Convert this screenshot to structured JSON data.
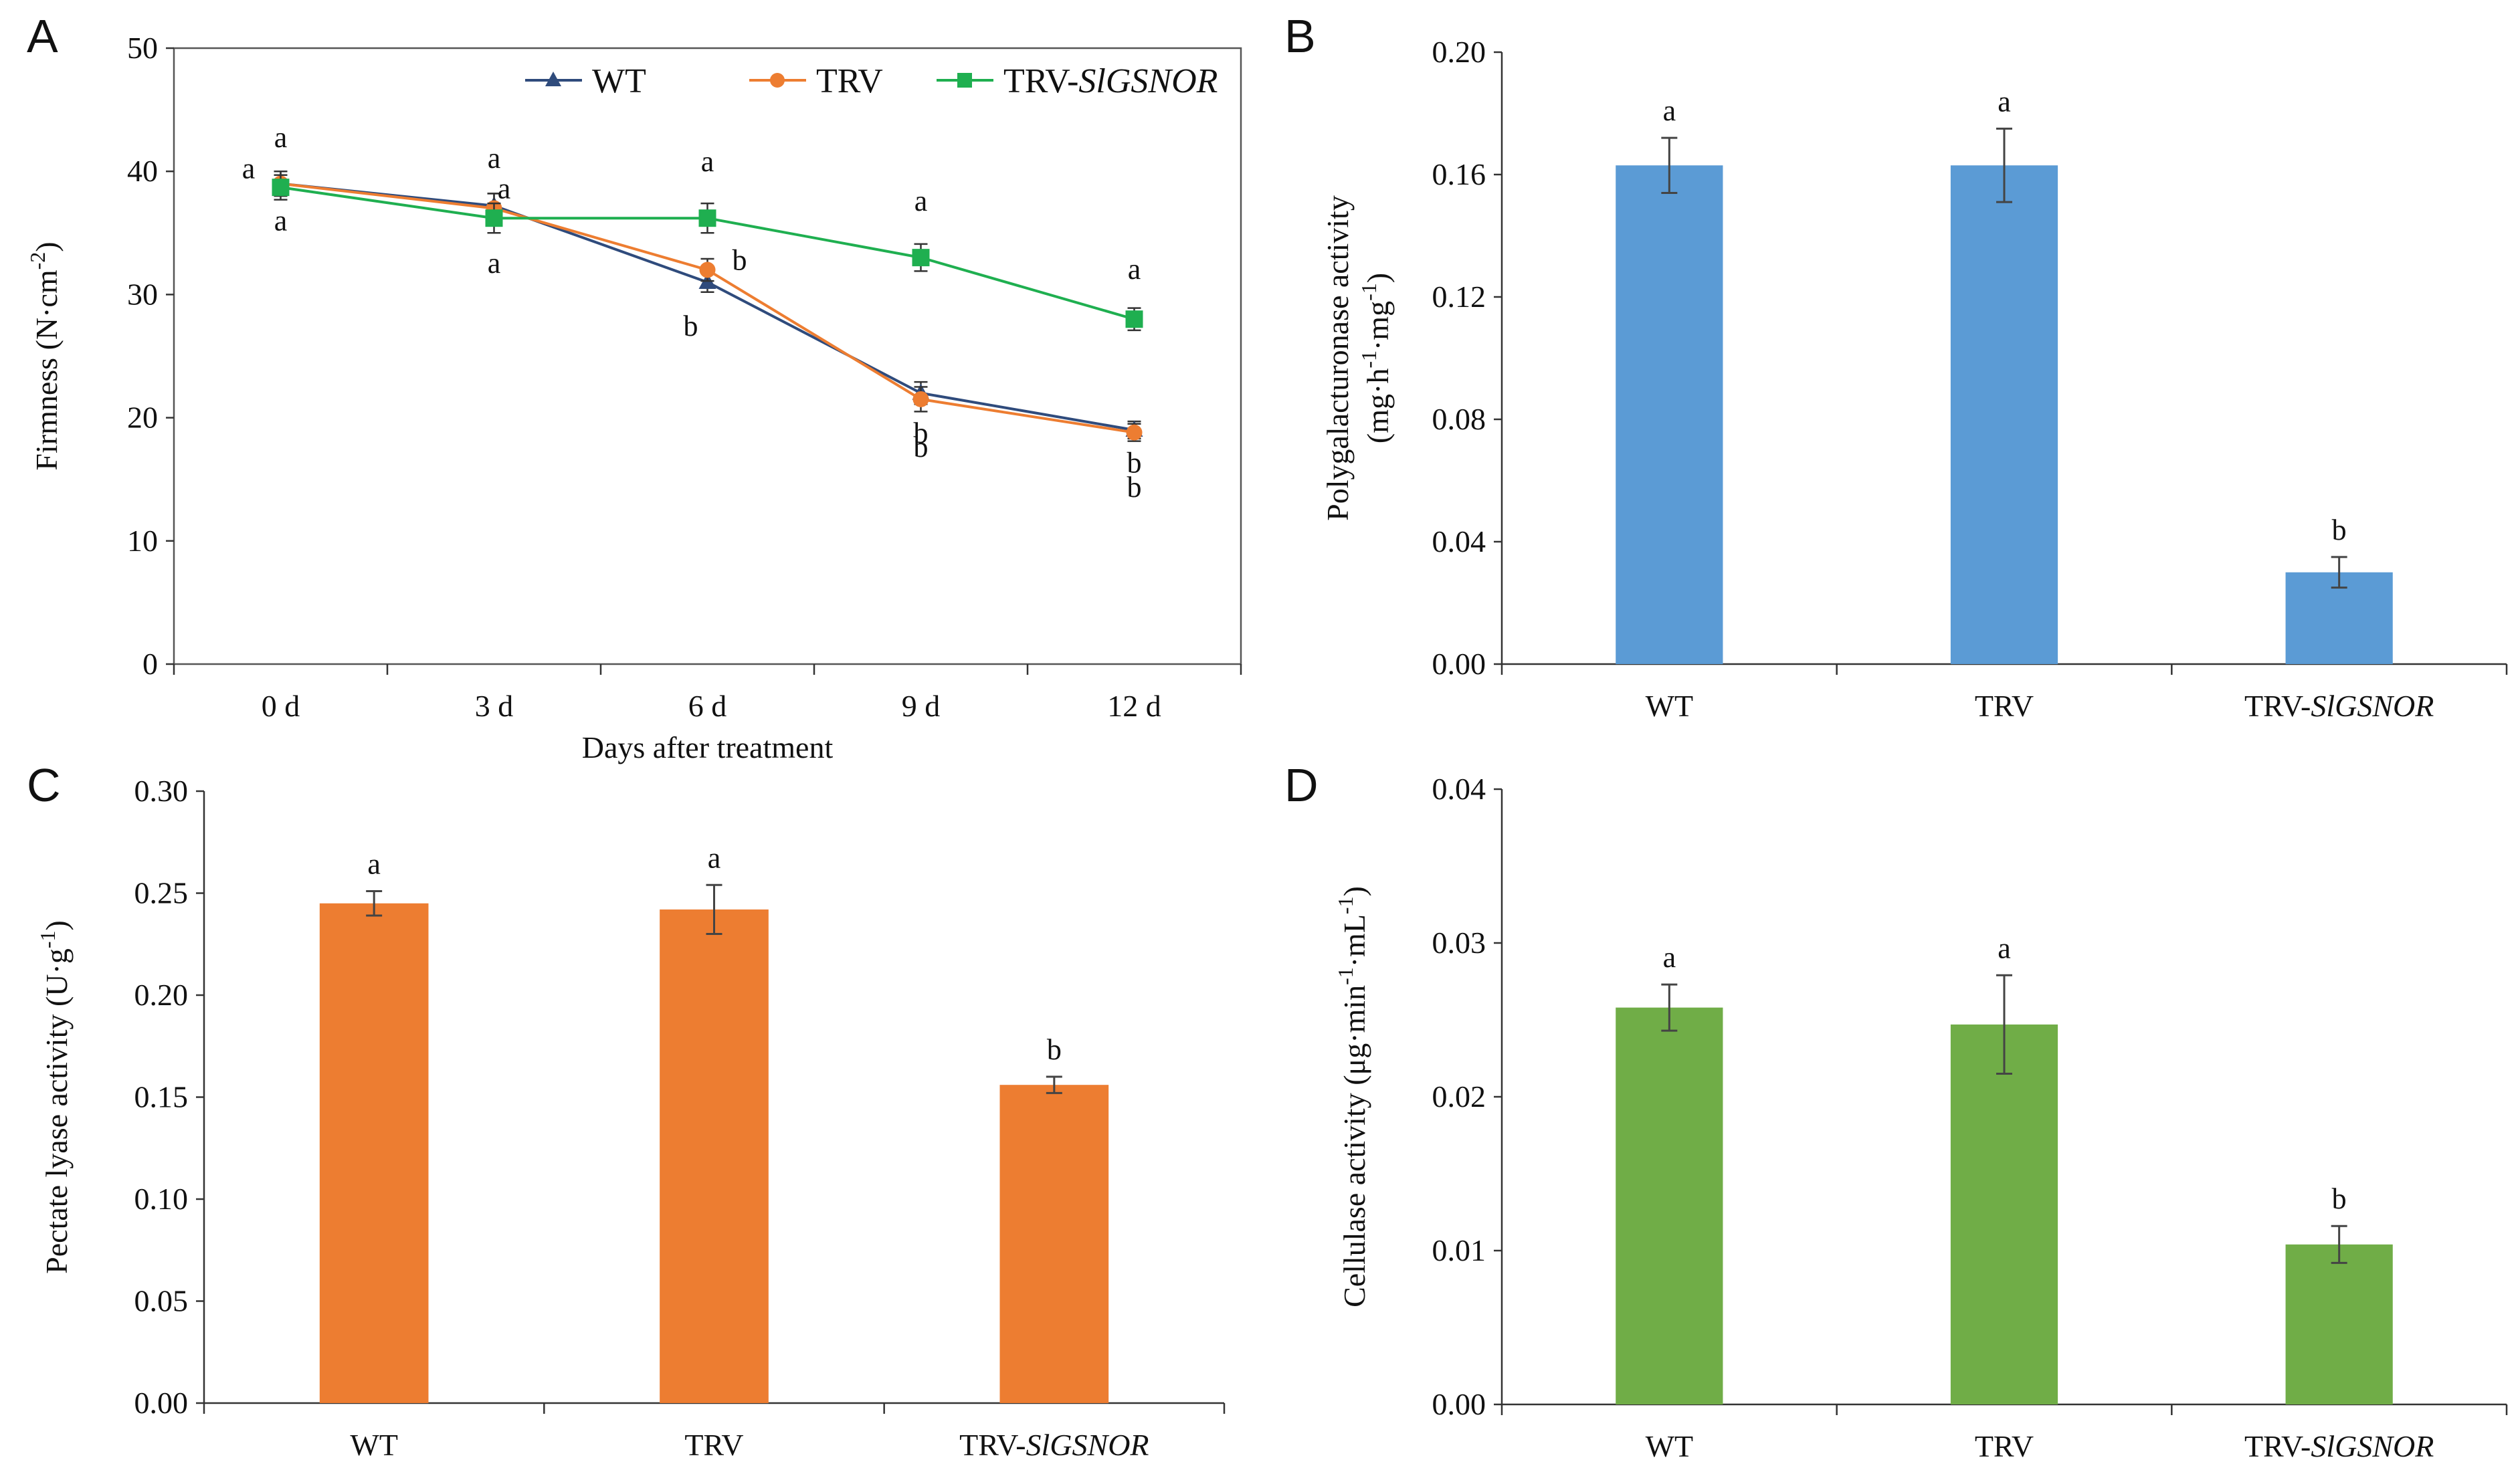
{
  "panels": [
    {
      "letter": "A",
      "type": "line",
      "title": "",
      "xlabel": "Days after treatment",
      "ylabel": "Firmness (N·cm⁻²)",
      "categories": [
        "0 d",
        "3 d",
        "6 d",
        "9 d",
        "12 d"
      ],
      "ylim": [
        0,
        50
      ],
      "yticks": [
        "0",
        "10",
        "20",
        "30",
        "40",
        "50"
      ],
      "legend": {
        "position": "top",
        "entries": [
          "WT",
          "TRV",
          "TRV-SlGSNOR"
        ]
      },
      "series": [
        {
          "name": "WT",
          "color": "#2F4B7C",
          "marker": "triangle",
          "values": [
            39.0,
            37.2,
            31.0,
            22.0,
            19.0
          ],
          "errors": [
            1.0,
            1.0,
            0.8,
            0.9,
            0.7
          ],
          "letters": [
            "a",
            "a",
            "b",
            "b",
            "b"
          ]
        },
        {
          "name": "TRV",
          "color": "#ED7D31",
          "marker": "circle",
          "values": [
            39.0,
            37.0,
            32.0,
            21.5,
            18.8
          ],
          "errors": [
            1.0,
            1.2,
            0.9,
            1.0,
            0.7
          ],
          "letters": [
            "a",
            "a",
            "b",
            "b",
            "b"
          ]
        },
        {
          "name": "TRV-SlGSNOR",
          "color": "#1FAF50",
          "marker": "square",
          "values": [
            38.7,
            36.2,
            36.2,
            33.0,
            28.0
          ],
          "errors": [
            1.0,
            1.2,
            1.2,
            1.1,
            0.9
          ],
          "letters": [
            "a",
            "a",
            "a",
            "a",
            "a"
          ]
        }
      ]
    },
    {
      "letter": "B",
      "type": "bar",
      "title": "",
      "xlabel": "",
      "ylabel": "Polygalacturonase activity",
      "ylabel2": "(mg·h⁻¹·mg⁻¹)",
      "categories": [
        "WT",
        "TRV",
        "TRV-SlGSNOR"
      ],
      "values": [
        0.163,
        0.163,
        0.03
      ],
      "errors": [
        0.009,
        0.012,
        0.005
      ],
      "letters": [
        "a",
        "a",
        "b"
      ],
      "ylim": [
        0,
        0.2
      ],
      "yticks": [
        "0.00",
        "0.04",
        "0.08",
        "0.12",
        "0.16",
        "0.20"
      ],
      "color": "#5B9BD5"
    },
    {
      "letter": "C",
      "type": "bar",
      "title": "",
      "xlabel": "",
      "ylabel": "Pectate lyase activity (U·g⁻¹)",
      "categories": [
        "WT",
        "TRV",
        "TRV-SlGSNOR"
      ],
      "values": [
        0.245,
        0.242,
        0.156
      ],
      "errors": [
        0.006,
        0.012,
        0.004
      ],
      "letters": [
        "a",
        "a",
        "b"
      ],
      "ylim": [
        0,
        0.3
      ],
      "yticks": [
        "0.00",
        "0.05",
        "0.10",
        "0.15",
        "0.20",
        "0.25",
        "0.30"
      ],
      "color": "#ED7D31"
    },
    {
      "letter": "D",
      "type": "bar",
      "title": "",
      "xlabel": "",
      "ylabel": "Cellulase activity (μg·min⁻¹·mL⁻¹)",
      "categories": [
        "WT",
        "TRV",
        "TRV-SlGSNOR"
      ],
      "values": [
        0.0258,
        0.0247,
        0.0104
      ],
      "errors": [
        0.0015,
        0.0032,
        0.0012
      ],
      "letters": [
        "a",
        "a",
        "b"
      ],
      "ylim": [
        0,
        0.04
      ],
      "yticks": [
        "0.00",
        "0.01",
        "0.02",
        "0.03",
        "0.04"
      ],
      "color": "#70AD47"
    }
  ]
}
